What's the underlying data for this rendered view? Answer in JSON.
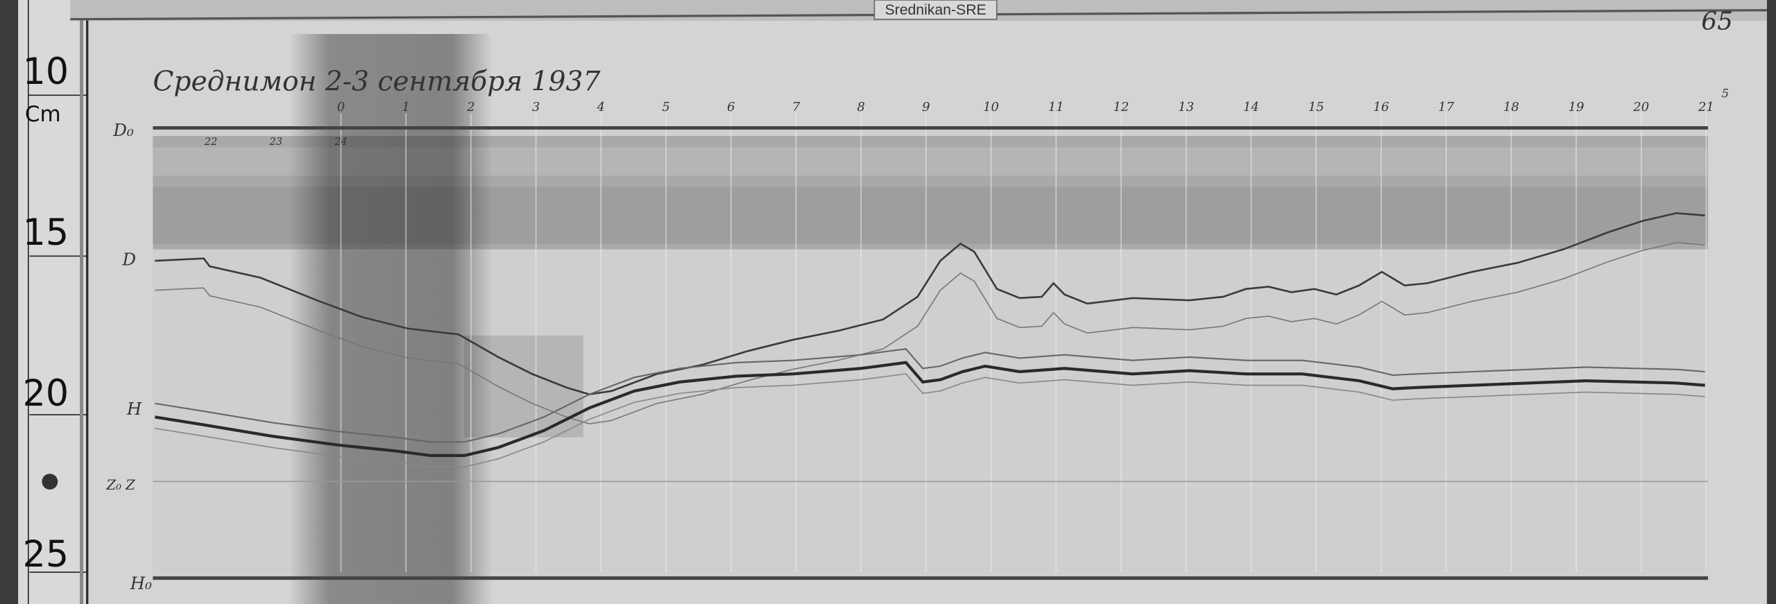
{
  "label_tab": "Srednikan-SRE",
  "page_number": "65",
  "title_handwritten": "Среднимон 2-3 сентября 1937",
  "ruler": {
    "unit": "Cm",
    "marks": [
      "10",
      "15",
      "20",
      "25"
    ]
  },
  "trace_labels": {
    "d0": "D₀",
    "d": "D",
    "h": "H",
    "z": "Z₀ Z",
    "h0": "H₀"
  },
  "chart_data": {
    "type": "line",
    "x_unit": "hour",
    "y_unit": "cm",
    "hour_labels_top": [
      "0",
      "1",
      "2",
      "3",
      "4",
      "5",
      "6",
      "7",
      "8",
      "9",
      "10",
      "11",
      "12",
      "13",
      "14",
      "15",
      "16",
      "17",
      "18",
      "19",
      "20",
      "21"
    ],
    "hour_labels_bottom": [
      "22",
      "23",
      "24"
    ],
    "extra_mark_right": "5",
    "ylim": [
      9,
      26
    ],
    "series": [
      {
        "name": "D",
        "x": [
          -2.86,
          -2.11,
          -2.02,
          -1.24,
          -0.37,
          0.33,
          1.03,
          1.81,
          2.42,
          2.94,
          3.47,
          3.82,
          4.16,
          4.86,
          5.56,
          6.25,
          6.95,
          7.65,
          8.34,
          8.87,
          9.22,
          9.53,
          9.74,
          10.09,
          10.44,
          10.78,
          10.96,
          11.13,
          11.48,
          12.18,
          13.05,
          13.57,
          13.92,
          14.27,
          14.62,
          14.97,
          15.31,
          15.66,
          16.01,
          16.36,
          16.71,
          17.4,
          18.1,
          18.8,
          19.49,
          20.02,
          20.54,
          20.98
        ],
        "y": [
          14.97,
          14.9,
          15.14,
          15.49,
          16.19,
          16.71,
          17.06,
          17.24,
          17.94,
          18.46,
          18.88,
          19.09,
          18.99,
          18.46,
          18.18,
          17.76,
          17.41,
          17.13,
          16.78,
          16.08,
          14.97,
          14.44,
          14.69,
          15.84,
          16.12,
          16.08,
          15.66,
          16.01,
          16.29,
          16.12,
          16.19,
          16.08,
          15.84,
          15.77,
          15.94,
          15.84,
          16.01,
          15.73,
          15.31,
          15.73,
          15.66,
          15.31,
          15.03,
          14.62,
          14.09,
          13.74,
          13.5,
          13.57
        ]
      },
      {
        "name": "H",
        "x": [
          -2.86,
          -2.11,
          -1.06,
          -0.02,
          0.85,
          1.38,
          1.9,
          2.42,
          3.12,
          3.82,
          4.51,
          5.21,
          6.08,
          6.95,
          8.0,
          8.69,
          8.95,
          9.22,
          9.56,
          9.91,
          10.44,
          11.13,
          12.18,
          13.05,
          13.92,
          14.79,
          15.66,
          16.18,
          16.53,
          17.4,
          19.15,
          20.54,
          20.98
        ],
        "y": [
          19.79,
          20.03,
          20.38,
          20.66,
          20.84,
          20.98,
          20.98,
          20.73,
          20.21,
          19.51,
          18.99,
          18.71,
          18.53,
          18.46,
          18.29,
          18.11,
          18.71,
          18.64,
          18.39,
          18.22,
          18.39,
          18.29,
          18.46,
          18.36,
          18.46,
          18.46,
          18.67,
          18.92,
          18.88,
          18.81,
          18.67,
          18.74,
          18.81
        ]
      }
    ],
    "baselines": {
      "d0": 10.87,
      "z": 21.78,
      "h0": 24.76
    },
    "colors": {
      "paper": "#d2d2d2",
      "trace": "#3a3a3a",
      "shadow": "#7a7a7a"
    }
  }
}
